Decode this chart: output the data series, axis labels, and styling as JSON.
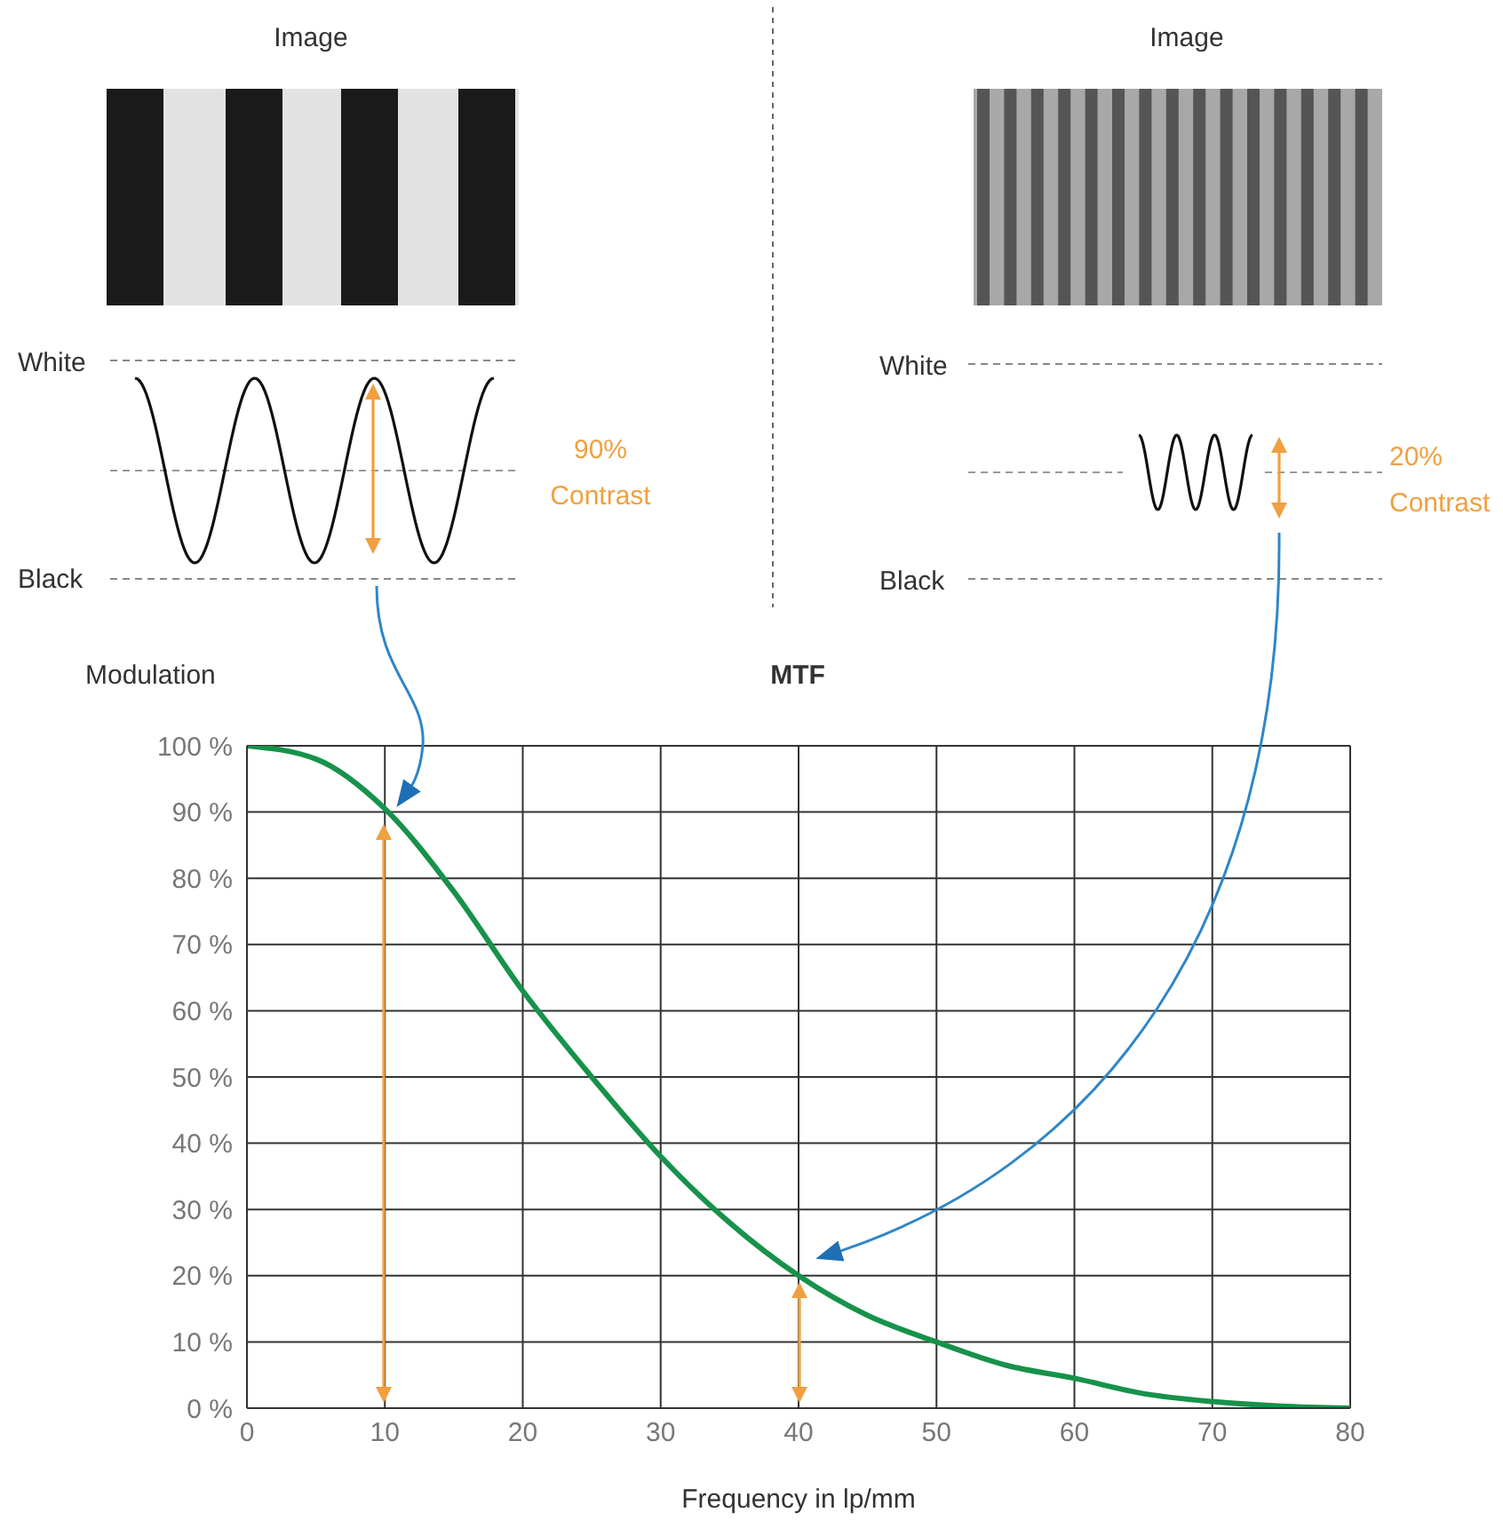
{
  "chart_data": {
    "type": "line",
    "title": "MTF",
    "xlabel": "Frequency in lp/mm",
    "ylabel": "Modulation",
    "annotations": [
      "Image",
      "White",
      "Black",
      "90%",
      "Contrast",
      "Image",
      "White",
      "Black",
      "20%",
      "Contrast"
    ],
    "x": [
      0,
      5,
      10,
      15,
      20,
      25,
      30,
      35,
      40,
      45,
      50,
      55,
      60,
      65,
      70,
      75,
      80
    ],
    "series": [
      {
        "color": "#17924a",
        "values": [
          100,
          98,
          90.5,
          78,
          63,
          50,
          38,
          28,
          20,
          14,
          10,
          6.5,
          4.5,
          2.2,
          1,
          0.3,
          0
        ]
      }
    ],
    "xlim": [
      0,
      80
    ],
    "xticks": [
      0,
      10,
      20,
      30,
      40,
      50,
      60,
      70,
      80
    ],
    "ylim": [
      0,
      100
    ],
    "yticks": [
      {
        "value": 0,
        "label": "0 %"
      },
      {
        "value": 10,
        "label": "10 %"
      },
      {
        "value": 20,
        "label": "20 %"
      },
      {
        "value": 30,
        "label": "30 %"
      },
      {
        "value": 40,
        "label": "40 %"
      },
      {
        "value": 50,
        "label": "50 %"
      },
      {
        "value": 60,
        "label": "60 %"
      },
      {
        "value": 70,
        "label": "70 %"
      },
      {
        "value": 80,
        "label": "80 %"
      },
      {
        "value": 90,
        "label": "90 %"
      },
      {
        "value": 100,
        "label": "100 %"
      }
    ],
    "grid": true,
    "marker": "none",
    "line_style": "solid"
  }
}
